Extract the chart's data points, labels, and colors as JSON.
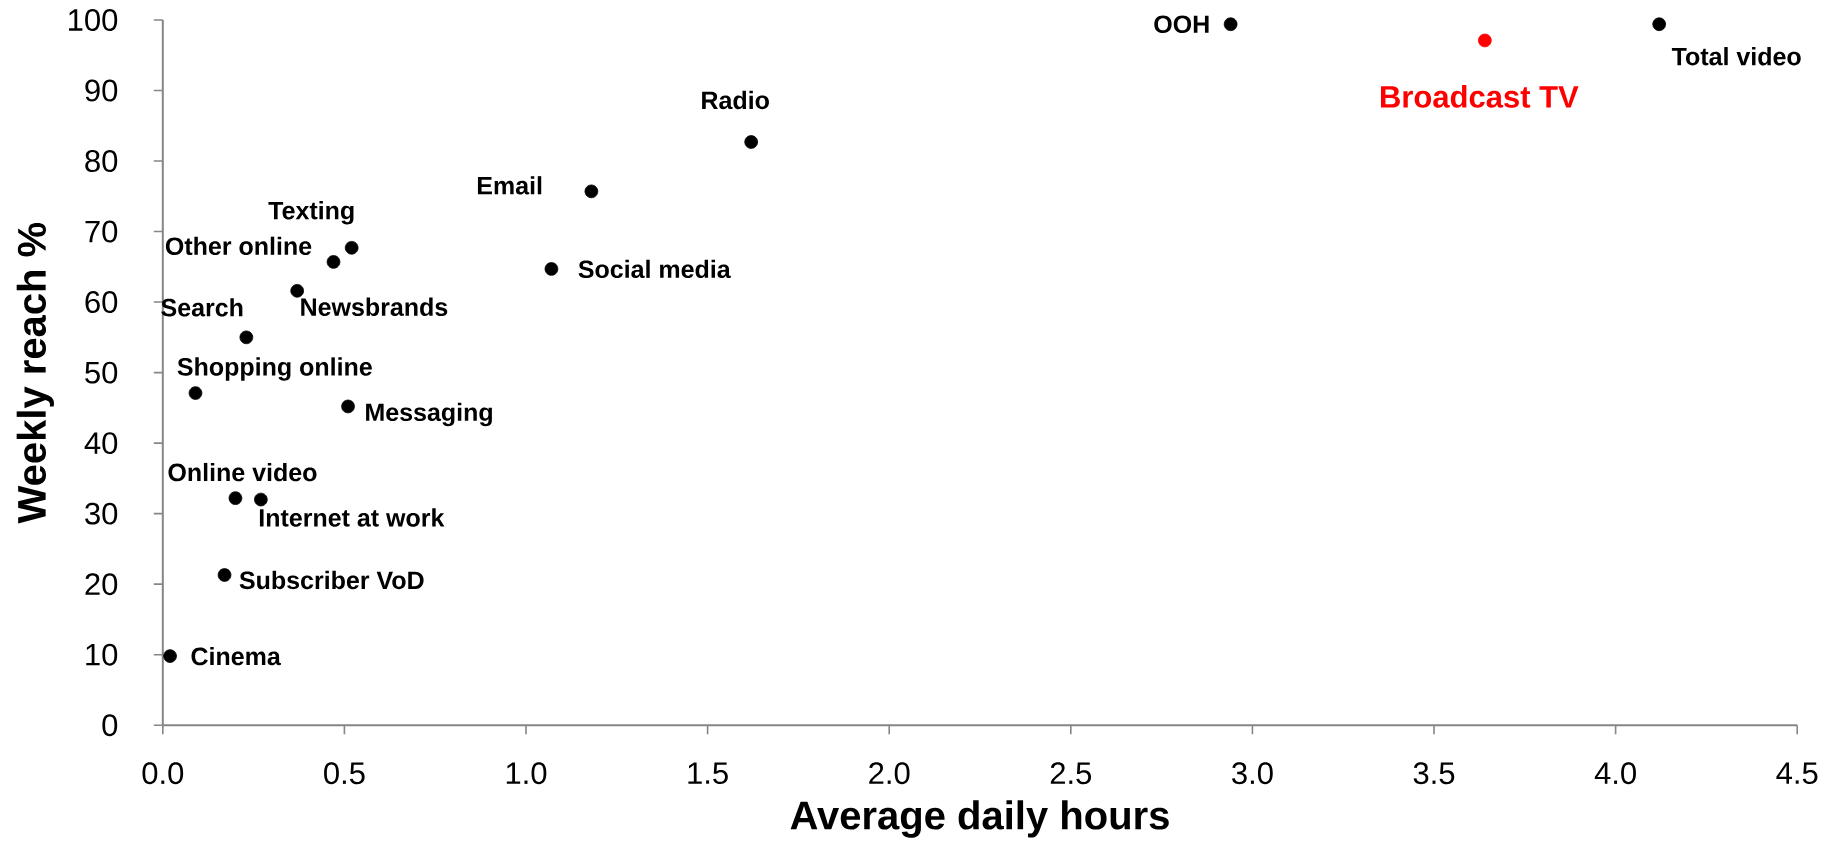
{
  "chart_data": {
    "type": "scatter",
    "xlabel": "Average daily hours",
    "ylabel": "Weekly reach %",
    "xlim": [
      0,
      4.5
    ],
    "ylim": [
      0,
      100
    ],
    "xticks": [
      {
        "value": 0,
        "label": "0.0"
      },
      0.5,
      {
        "value": 1,
        "label": "1.0"
      },
      1.5,
      {
        "value": 2,
        "label": "2.0"
      },
      2.5,
      {
        "value": 3,
        "label": "3.0"
      },
      3.5,
      {
        "value": 4,
        "label": "4.0"
      },
      4.5
    ],
    "yticks": [
      0,
      10,
      20,
      30,
      40,
      50,
      60,
      70,
      80,
      90,
      100
    ],
    "marker": "circle",
    "series": [
      {
        "name": "OOH",
        "color": "#000000",
        "x": [
          2.94
        ],
        "values": [
          99.4
        ]
      },
      {
        "name": "Broadcast TV",
        "color": "#ff0000",
        "x": [
          3.64
        ],
        "values": [
          97.1
        ]
      },
      {
        "name": "Total video",
        "color": "#000000",
        "x": [
          4.12
        ],
        "values": [
          99.4
        ]
      },
      {
        "name": "Radio",
        "color": "#000000",
        "x": [
          1.62
        ],
        "values": [
          82.7
        ]
      },
      {
        "name": "Email",
        "color": "#000000",
        "x": [
          1.18
        ],
        "values": [
          75.7
        ]
      },
      {
        "name": "Social media",
        "color": "#000000",
        "x": [
          1.07
        ],
        "values": [
          64.7
        ]
      },
      {
        "name": "Texting",
        "color": "#000000",
        "x": [
          0.52
        ],
        "values": [
          67.7
        ]
      },
      {
        "name": "Other online",
        "color": "#000000",
        "x": [
          0.47
        ],
        "values": [
          65.7
        ]
      },
      {
        "name": "Newsbrands",
        "color": "#000000",
        "x": [
          0.37
        ],
        "values": [
          61.6
        ]
      },
      {
        "name": "Search",
        "color": "#000000",
        "x": [
          0.23
        ],
        "values": [
          55.0
        ]
      },
      {
        "name": "Shopping online",
        "color": "#000000",
        "x": [
          0.09
        ],
        "values": [
          47.1
        ]
      },
      {
        "name": "Messaging",
        "color": "#000000",
        "x": [
          0.51
        ],
        "values": [
          45.2
        ]
      },
      {
        "name": "Online video",
        "color": "#000000",
        "x": [
          0.2
        ],
        "values": [
          32.2
        ]
      },
      {
        "name": "Internet at work",
        "color": "#000000",
        "x": [
          0.27
        ],
        "values": [
          32.0
        ]
      },
      {
        "name": "Subscriber VoD",
        "color": "#000000",
        "x": [
          0.17
        ],
        "values": [
          21.3
        ]
      },
      {
        "name": "Cinema",
        "color": "#000000",
        "x": [
          0.02
        ],
        "values": [
          9.8
        ]
      }
    ]
  }
}
